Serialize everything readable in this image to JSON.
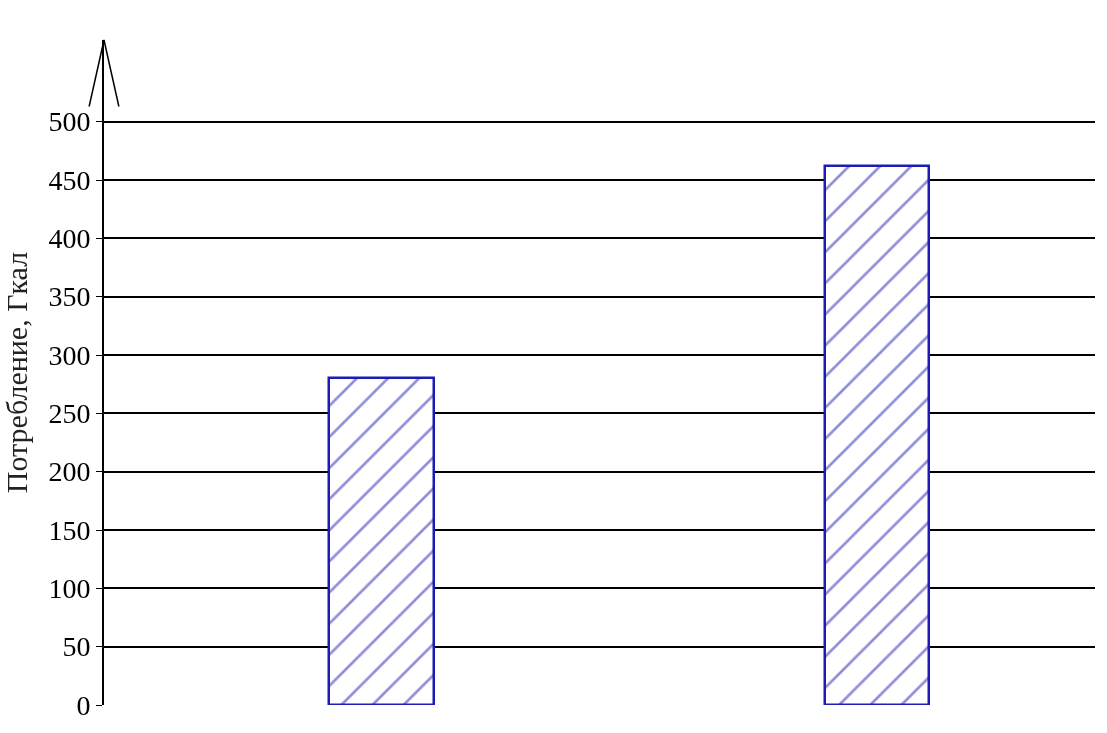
{
  "chart_data": {
    "type": "bar",
    "ylabel": "Потребление, Гкал",
    "categories": [
      null,
      null
    ],
    "values": [
      280,
      462
    ],
    "color": "#1c1cb4",
    "ylim": [
      0,
      570
    ],
    "yticks": [
      0,
      50,
      100,
      150,
      200,
      250,
      300,
      350,
      400,
      450,
      500
    ],
    "grid": "y"
  }
}
